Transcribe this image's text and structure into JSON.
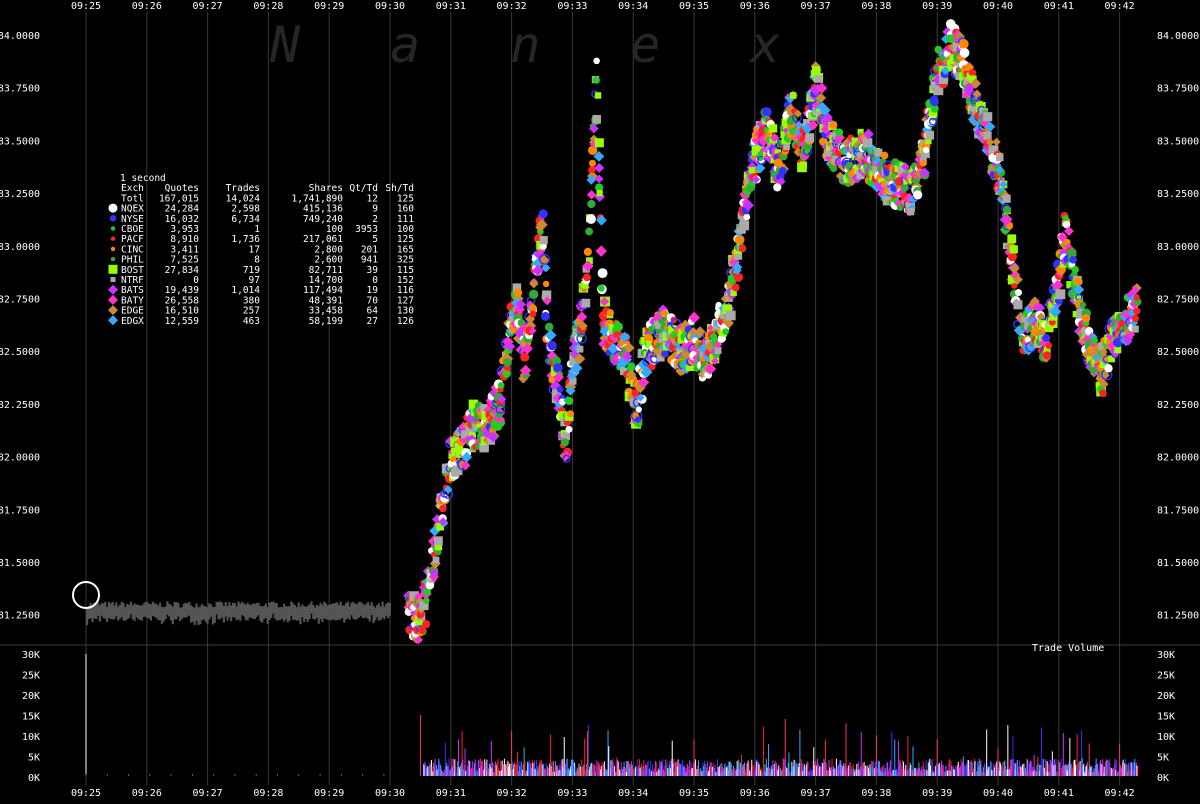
{
  "watermark": "Nanex",
  "chart_data": {
    "type": "scatter",
    "x_ticks": [
      "09:25",
      "09:26",
      "09:27",
      "09:28",
      "09:29",
      "09:30",
      "09:31",
      "09:32",
      "09:33",
      "09:34",
      "09:35",
      "09:36",
      "09:37",
      "09:38",
      "09:39",
      "09:40",
      "09:41",
      "09:42"
    ],
    "x_range_minutes": [
      25.0,
      42.4
    ],
    "price_ticks": [
      "84.0000",
      "83.7500",
      "83.5000",
      "83.2500",
      "83.0000",
      "82.7500",
      "82.5000",
      "82.2500",
      "82.0000",
      "81.7500",
      "81.5000",
      "81.2500"
    ],
    "price_range": [
      81.125,
      84.05
    ],
    "volume_ticks": [
      "30K",
      "25K",
      "20K",
      "15K",
      "10K",
      "5K",
      "0K"
    ],
    "volume_range": [
      0,
      30000
    ],
    "volume_label": "Trade Volume",
    "grid": true,
    "legend": {
      "interval": "1 second",
      "headers": [
        "Exch",
        "Quotes",
        "Trades",
        "Shares",
        "Qt/Td",
        "Sh/Td"
      ],
      "rows": [
        {
          "exch": "Totl",
          "quotes": "167,015",
          "trades": "14,024",
          "shares": "1,741,890",
          "qt_td": "12",
          "sh_td": "125",
          "color": "",
          "marker": "none"
        },
        {
          "exch": "NQEX",
          "quotes": "24,284",
          "trades": "2,598",
          "shares": "415,136",
          "qt_td": "9",
          "sh_td": "160",
          "color": "#ffffff",
          "marker": "circle-large"
        },
        {
          "exch": "NYSE",
          "quotes": "16,032",
          "trades": "6,734",
          "shares": "749,240",
          "qt_td": "2",
          "sh_td": "111",
          "color": "#3333ff",
          "marker": "circle"
        },
        {
          "exch": "CBOE",
          "quotes": "3,953",
          "trades": "1",
          "shares": "100",
          "qt_td": "3953",
          "sh_td": "100",
          "color": "#22cc22",
          "marker": "circle-small"
        },
        {
          "exch": "PACF",
          "quotes": "8,910",
          "trades": "1,736",
          "shares": "217,061",
          "qt_td": "5",
          "sh_td": "125",
          "color": "#ff2222",
          "marker": "circle-small"
        },
        {
          "exch": "CINC",
          "quotes": "3,411",
          "trades": "17",
          "shares": "2,800",
          "qt_td": "201",
          "sh_td": "165",
          "color": "#ff8800",
          "marker": "circle-small"
        },
        {
          "exch": "PHIL",
          "quotes": "7,525",
          "trades": "8",
          "shares": "2,600",
          "qt_td": "941",
          "sh_td": "325",
          "color": "#33aa33",
          "marker": "circle-small"
        },
        {
          "exch": "BOST",
          "quotes": "27,834",
          "trades": "719",
          "shares": "82,711",
          "qt_td": "39",
          "sh_td": "115",
          "color": "#99ff00",
          "marker": "square"
        },
        {
          "exch": "NTRF",
          "quotes": "0",
          "trades": "97",
          "shares": "14,700",
          "qt_td": "0",
          "sh_td": "152",
          "color": "#aaaaaa",
          "marker": "square-small"
        },
        {
          "exch": "BATS",
          "quotes": "19,439",
          "trades": "1,014",
          "shares": "117,494",
          "qt_td": "19",
          "sh_td": "116",
          "color": "#cc33ff",
          "marker": "diamond"
        },
        {
          "exch": "BATY",
          "quotes": "26,558",
          "trades": "380",
          "shares": "48,391",
          "qt_td": "70",
          "sh_td": "127",
          "color": "#ff33cc",
          "marker": "diamond"
        },
        {
          "exch": "EDGE",
          "quotes": "16,510",
          "trades": "257",
          "shares": "33,458",
          "qt_td": "64",
          "sh_td": "130",
          "color": "#cc8833",
          "marker": "diamond"
        },
        {
          "exch": "EDGX",
          "quotes": "12,559",
          "trades": "463",
          "shares": "58,199",
          "qt_td": "27",
          "sh_td": "126",
          "color": "#33aaff",
          "marker": "diamond"
        }
      ]
    },
    "price_path": [
      [
        25.0,
        81.28
      ],
      [
        26.0,
        81.27
      ],
      [
        27.0,
        81.26
      ],
      [
        28.0,
        81.27
      ],
      [
        29.0,
        81.27
      ],
      [
        30.0,
        81.25
      ],
      [
        30.3,
        81.24
      ],
      [
        30.5,
        81.23
      ],
      [
        30.6,
        81.32
      ],
      [
        30.8,
        81.65
      ],
      [
        31.0,
        82.0
      ],
      [
        31.2,
        82.05
      ],
      [
        31.4,
        82.15
      ],
      [
        31.6,
        82.15
      ],
      [
        31.8,
        82.25
      ],
      [
        31.95,
        82.55
      ],
      [
        32.1,
        82.75
      ],
      [
        32.2,
        82.45
      ],
      [
        32.35,
        82.7
      ],
      [
        32.5,
        83.15
      ],
      [
        32.6,
        82.55
      ],
      [
        32.75,
        82.35
      ],
      [
        32.9,
        82.05
      ],
      [
        33.0,
        82.45
      ],
      [
        33.1,
        82.55
      ],
      [
        33.25,
        82.85
      ],
      [
        33.4,
        83.85
      ],
      [
        33.5,
        82.65
      ],
      [
        33.7,
        82.55
      ],
      [
        33.9,
        82.45
      ],
      [
        34.05,
        82.2
      ],
      [
        34.2,
        82.5
      ],
      [
        34.5,
        82.6
      ],
      [
        34.8,
        82.5
      ],
      [
        35.0,
        82.55
      ],
      [
        35.2,
        82.45
      ],
      [
        35.4,
        82.6
      ],
      [
        35.6,
        82.75
      ],
      [
        35.8,
        83.1
      ],
      [
        36.0,
        83.4
      ],
      [
        36.2,
        83.55
      ],
      [
        36.4,
        83.35
      ],
      [
        36.6,
        83.65
      ],
      [
        36.8,
        83.45
      ],
      [
        37.0,
        83.75
      ],
      [
        37.2,
        83.5
      ],
      [
        37.5,
        83.4
      ],
      [
        37.8,
        83.45
      ],
      [
        38.0,
        83.35
      ],
      [
        38.3,
        83.3
      ],
      [
        38.6,
        83.25
      ],
      [
        38.8,
        83.45
      ],
      [
        39.0,
        83.8
      ],
      [
        39.2,
        83.95
      ],
      [
        39.4,
        83.9
      ],
      [
        39.6,
        83.7
      ],
      [
        39.8,
        83.55
      ],
      [
        40.0,
        83.35
      ],
      [
        40.2,
        83.0
      ],
      [
        40.4,
        82.55
      ],
      [
        40.6,
        82.65
      ],
      [
        40.8,
        82.55
      ],
      [
        41.0,
        82.85
      ],
      [
        41.1,
        83.05
      ],
      [
        41.3,
        82.75
      ],
      [
        41.5,
        82.5
      ],
      [
        41.7,
        82.4
      ],
      [
        41.9,
        82.55
      ],
      [
        42.1,
        82.65
      ],
      [
        42.3,
        82.7
      ]
    ],
    "volume_spikes": [
      [
        25.0,
        30000
      ],
      [
        30.5,
        15000
      ],
      [
        32.0,
        11000
      ],
      [
        33.25,
        11000
      ],
      [
        35.0,
        9000
      ],
      [
        36.5,
        14000
      ],
      [
        37.5,
        13000
      ],
      [
        38.0,
        10000
      ],
      [
        39.0,
        9000
      ],
      [
        40.0,
        7000
      ],
      [
        41.5,
        8000
      ],
      [
        42.0,
        8000
      ]
    ]
  }
}
